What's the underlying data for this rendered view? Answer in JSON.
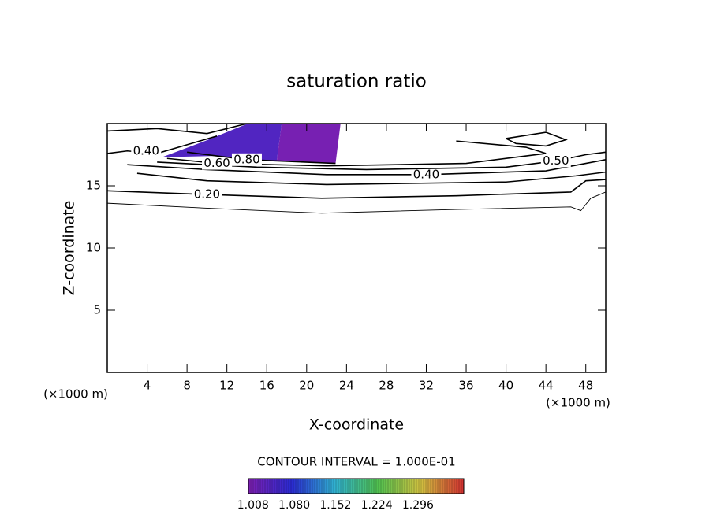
{
  "chart_data": {
    "type": "contour",
    "title": "saturation ratio",
    "xlabel": "X-coordinate",
    "ylabel": "Z-coordinate",
    "x_unit_labels": [
      "(×1000 m)",
      "(×1000 m)"
    ],
    "annotation": "CONTOUR INTERVAL = 1.000E-01",
    "xlim": [
      0,
      50
    ],
    "ylim": [
      0,
      20
    ],
    "xticks": [
      4,
      8,
      12,
      16,
      20,
      24,
      28,
      32,
      36,
      40,
      44,
      48
    ],
    "yticks": [
      5,
      10,
      15
    ],
    "line_color": "#000000",
    "contours": [
      {
        "level": 0.1,
        "x": [
          0,
          10,
          21.5,
          35,
          46.5,
          47.5,
          48.5,
          50
        ],
        "y": [
          13.6,
          13.2,
          12.8,
          13.1,
          13.3,
          13.0,
          14.0,
          14.5
        ]
      },
      {
        "level": 0.2,
        "level_label": "0.20",
        "x": [
          0,
          10,
          21.5,
          35,
          46.5,
          48,
          50
        ],
        "y": [
          14.6,
          14.3,
          14.0,
          14.2,
          14.5,
          15.4,
          15.5
        ]
      },
      {
        "level": 0.3,
        "x": [
          3,
          10,
          22,
          40,
          47,
          50
        ],
        "y": [
          16.0,
          15.4,
          15.1,
          15.3,
          15.8,
          16.1
        ]
      },
      {
        "level": 0.4,
        "level_label": "0.40",
        "x": [
          2,
          10,
          22,
          32,
          44,
          48,
          50
        ],
        "y": [
          16.7,
          16.3,
          15.9,
          15.9,
          16.2,
          16.8,
          17.1
        ]
      },
      {
        "level": 0.5,
        "level_label": "0.50",
        "x": [
          5,
          15,
          26,
          40,
          45,
          48,
          50
        ],
        "y": [
          16.9,
          16.5,
          16.3,
          16.5,
          17.0,
          17.5,
          17.7
        ]
      },
      {
        "level": 0.6,
        "level_label": "0.60",
        "x": [
          6,
          11,
          22,
          36,
          44,
          42,
          35
        ],
        "y": [
          17.2,
          16.8,
          16.6,
          16.8,
          17.6,
          18.1,
          18.6
        ]
      },
      {
        "level": 0.8,
        "level_label": "0.80",
        "x": [
          8,
          14,
          22.9
        ],
        "y": [
          17.7,
          17.1,
          16.8
        ]
      },
      {
        "level": 0.4,
        "level_label": "0.40",
        "x": [
          0,
          2,
          5,
          8,
          11
        ],
        "y": [
          17.6,
          17.8,
          17.6,
          18.3,
          19.0
        ]
      },
      {
        "level": 0.3,
        "x": [
          0,
          5,
          10,
          14
        ],
        "y": [
          19.4,
          19.6,
          19.2,
          20
        ]
      },
      {
        "level": 0.5,
        "x": [
          40,
          44,
          46,
          44,
          41,
          40
        ],
        "y": [
          18.8,
          19.3,
          18.7,
          18.2,
          18.4,
          18.8
        ]
      }
    ],
    "shaded": [
      {
        "value": 1.04,
        "x": [
          5.5,
          9.8,
          14.1,
          17.5,
          17.0,
          15.4,
          10.6
        ],
        "y": [
          17.3,
          18.6,
          20,
          20,
          17.0,
          17.0,
          17.4
        ]
      },
      {
        "value": 1.005,
        "x": [
          17.5,
          23.4,
          22.9,
          17.0
        ],
        "y": [
          20,
          20,
          16.8,
          17.0
        ]
      }
    ],
    "colorbar_lim": [
      1.0,
      1.376
    ],
    "colormap": [
      "#7d1fb0",
      "#2a2ad0",
      "#30b0d0",
      "#50c050",
      "#d0c040",
      "#d03030"
    ],
    "colorbar_ticks": [
      1.008,
      {
        "value": 1.08,
        "label": "1.080"
      },
      1.152,
      1.224,
      1.296
    ]
  }
}
